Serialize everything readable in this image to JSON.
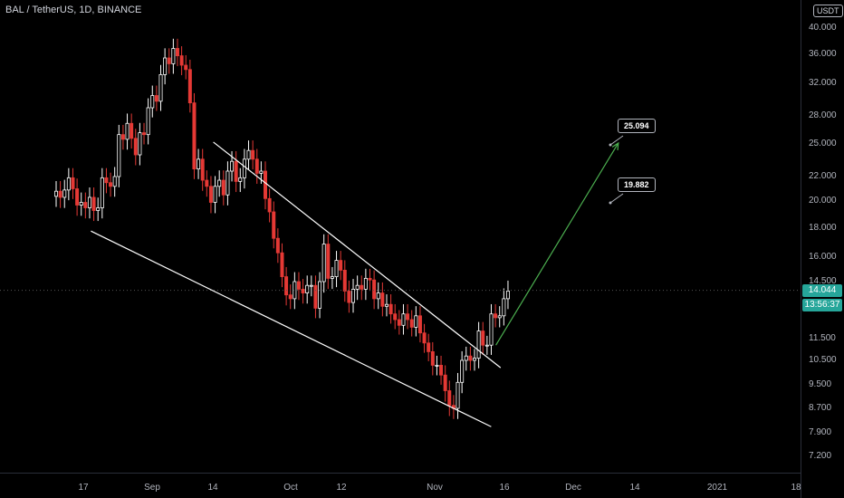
{
  "header": {
    "title": "BAL / TetherUS, 1D, BINANCE",
    "currency": "USDT"
  },
  "price_axis": {
    "ticks": [
      "40.000",
      "36.000",
      "32.000",
      "28.000",
      "25.000",
      "22.000",
      "20.000",
      "18.000",
      "16.000",
      "14.500",
      "11.500",
      "10.500",
      "9.500",
      "8.700",
      "7.900",
      "7.200"
    ]
  },
  "time_axis": {
    "ticks": [
      "17",
      "Sep",
      "14",
      "Oct",
      "12",
      "Nov",
      "16",
      "Dec",
      "14",
      "2021",
      "18"
    ]
  },
  "last_price": {
    "value": "14.044",
    "countdown": "13:56:37"
  },
  "targets": {
    "high": "25.094",
    "low": "19.882"
  },
  "colors": {
    "up": "#ffffff",
    "down": "#e53935",
    "target_arrow": "#4caf50",
    "badge": "#26a69a"
  },
  "chart_data": {
    "type": "candlestick",
    "symbol": "BAL / TetherUS",
    "interval": "1D",
    "exchange": "BINANCE",
    "candles_close": [
      20.8,
      20.3,
      20.9,
      21.9,
      21.0,
      19.7,
      19.9,
      19.5,
      20.3,
      19.3,
      19.5,
      21.9,
      21.5,
      21.2,
      22.0,
      26.0,
      25.5,
      27.2,
      25.6,
      24.0,
      26.2,
      26.0,
      29.0,
      30.5,
      29.8,
      33.2,
      35.5,
      34.7,
      36.9,
      35.8,
      34.5,
      33.9,
      29.6,
      22.7,
      23.6,
      21.7,
      21.2,
      19.9,
      21.2,
      21.7,
      20.5,
      22.5,
      23.4,
      21.6,
      21.9,
      23.6,
      24.4,
      23.6,
      22.3,
      22.5,
      20.2,
      19.2,
      17.3,
      16.3,
      14.8,
      13.8,
      13.6,
      14.5,
      14.1,
      13.9,
      14.3,
      14.3,
      13.1,
      14.5,
      16.9,
      14.7,
      14.8,
      15.8,
      15.2,
      14.0,
      13.4,
      14.1,
      14.3,
      14.1,
      14.7,
      14.6,
      13.6,
      13.9,
      13.2,
      13.3,
      12.8,
      12.5,
      12.2,
      12.8,
      12.5,
      12.1,
      12.7,
      11.8,
      11.3,
      10.9,
      10.3,
      10.3,
      9.9,
      9.3,
      8.8,
      8.7,
      9.6,
      10.5,
      10.7,
      10.5,
      10.6,
      11.9,
      11.2,
      11.2,
      12.8,
      12.6,
      12.7,
      13.6,
      14.0
    ],
    "drawings": {
      "channel_upper": {
        "from": [
          "2020-09-14",
          25.2
        ],
        "to": [
          "2020-11-14",
          10.2
        ]
      },
      "channel_lower": {
        "from": [
          "2020-08-19",
          17.8
        ],
        "to": [
          "2020-11-12",
          8.1
        ]
      },
      "projection_arrow": {
        "from": [
          "2020-11-13",
          11.2
        ],
        "to": [
          "2020-12-09",
          25.1
        ]
      }
    },
    "last_price": 14.044,
    "targets": [
      25.094,
      19.882
    ]
  }
}
